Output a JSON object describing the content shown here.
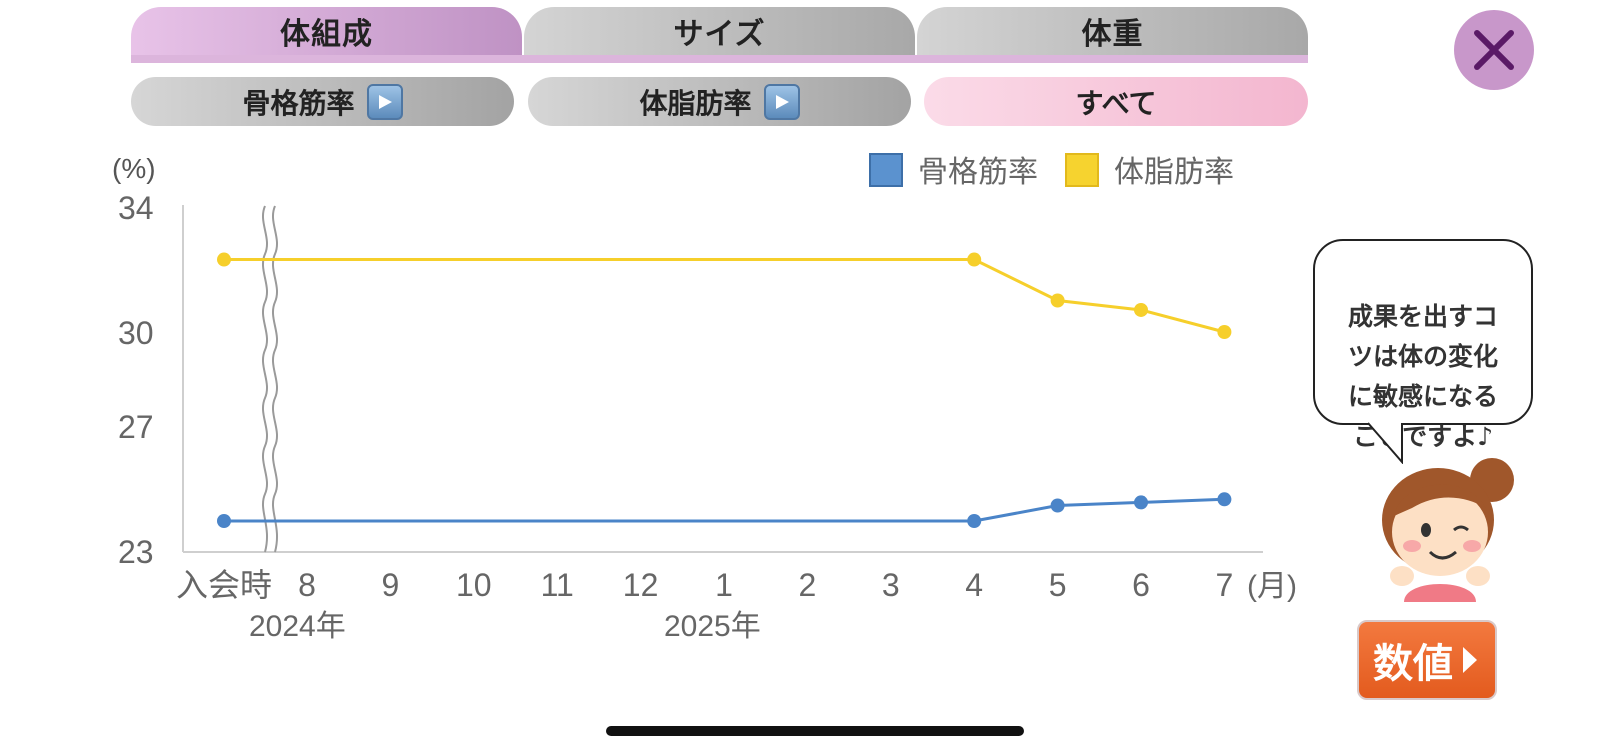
{
  "tabs": [
    {
      "label": "体組成",
      "active": true
    },
    {
      "label": "サイズ",
      "active": false
    },
    {
      "label": "体重",
      "active": false
    }
  ],
  "filters": [
    {
      "label": "骨格筋率",
      "active": false,
      "icon": "play-icon"
    },
    {
      "label": "体脂肪率",
      "active": false,
      "icon": "play-icon"
    },
    {
      "label": "すべて",
      "active": true
    }
  ],
  "close_icon": "close-icon",
  "chart_data": {
    "type": "line",
    "ylabel": "(%)",
    "xlabel": "(月)",
    "yticks": [
      "34",
      "30",
      "27",
      "23"
    ],
    "ylim": [
      23,
      34
    ],
    "categories": [
      "入会時",
      "8",
      "9",
      "10",
      "11",
      "12",
      "1",
      "2",
      "3",
      "4",
      "5",
      "6",
      "7"
    ],
    "year_labels": [
      "2024年",
      "2025年"
    ],
    "axis_break": "after 入会時",
    "grid": false,
    "legend_position": "top-right",
    "series": [
      {
        "name": "骨格筋率",
        "color": "#4a84c8",
        "points": [
          {
            "x": "入会時",
            "y": 24.0
          },
          {
            "x": "4",
            "y": 24.0
          },
          {
            "x": "5",
            "y": 24.5
          },
          {
            "x": "6",
            "y": 24.6
          },
          {
            "x": "7",
            "y": 24.7
          }
        ]
      },
      {
        "name": "体脂肪率",
        "color": "#f6cf2b",
        "points": [
          {
            "x": "入会時",
            "y": 32.3
          },
          {
            "x": "4",
            "y": 32.3
          },
          {
            "x": "5",
            "y": 31.0
          },
          {
            "x": "6",
            "y": 30.7
          },
          {
            "x": "7",
            "y": 30.0
          }
        ]
      }
    ]
  },
  "bubble": {
    "text": "成果を出すコ\nツは体の変化\nに敏感になる\nことですよ♪"
  },
  "mascot_icon": "girl-mascot-icon",
  "value_button": {
    "label": "数値"
  }
}
